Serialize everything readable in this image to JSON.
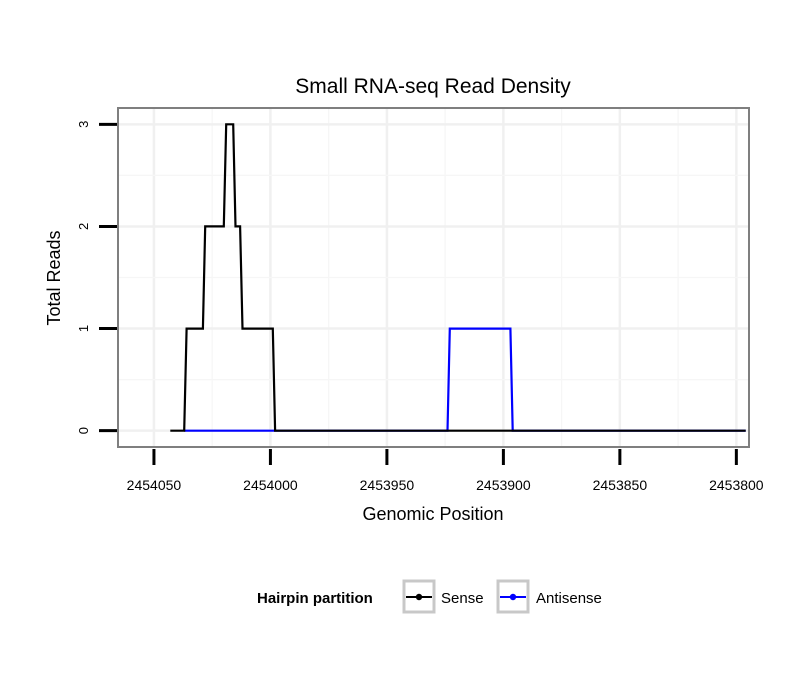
{
  "chart_data": {
    "type": "line",
    "title": "Small RNA-seq Read Density",
    "xlabel": "Genomic Position",
    "ylabel": "Total Reads",
    "xlim": [
      2454065,
      2453795
    ],
    "ylim": [
      -0.15,
      3.15
    ],
    "x_reversed": true,
    "grid": true,
    "x_ticks": [
      2454050,
      2454000,
      2453950,
      2453900,
      2453850,
      2453800
    ],
    "x_tick_labels": [
      "2454050",
      "2454000",
      "2453950",
      "2453900",
      "2453850",
      "2453800"
    ],
    "y_ticks": [
      0,
      1,
      2,
      3
    ],
    "y_tick_labels": [
      "0",
      "1",
      "2",
      "3"
    ],
    "legend": {
      "title": "Hairpin partition",
      "position": "bottom",
      "entries": [
        "Sense",
        "Antisense"
      ]
    },
    "series": [
      {
        "name": "Antisense",
        "color": "#0000ff",
        "step": true,
        "x": [
          2454037,
          2453978,
          2453977,
          2453950,
          2453924,
          2453923,
          2453897,
          2453896,
          2453796
        ],
        "values": [
          0,
          0,
          0,
          0,
          0,
          1,
          1,
          0,
          0
        ]
      },
      {
        "name": "Sense",
        "color": "#000000",
        "step": true,
        "x": [
          2454043,
          2454037,
          2454036,
          2454029,
          2454028,
          2454020,
          2454019,
          2454016,
          2454015,
          2454013,
          2454012,
          2454010,
          2454009,
          2453999,
          2453998,
          2453950,
          2453900,
          2453850,
          2453796
        ],
        "values": [
          0,
          0,
          1,
          1,
          2,
          2,
          3,
          3,
          2,
          2,
          1,
          1,
          1,
          1,
          0,
          0,
          0,
          0,
          0
        ]
      }
    ]
  }
}
